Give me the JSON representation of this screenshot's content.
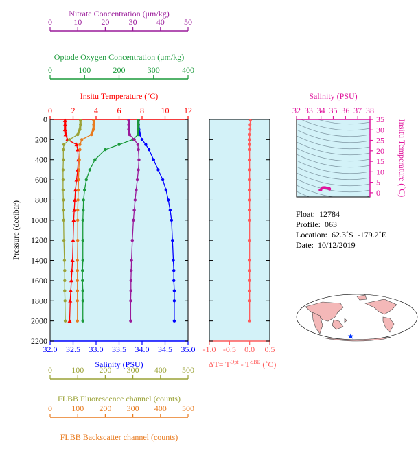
{
  "chart_data": [
    {
      "type": "line",
      "chart": "main-profile",
      "xlim_salinity": [
        32.0,
        35.0
      ],
      "xlim_temperature": [
        0,
        12
      ],
      "xlim_oxygen": [
        0,
        400
      ],
      "xlim_nitrate": [
        0,
        50
      ],
      "xlim_fluorescence": [
        0,
        500
      ],
      "xlim_backscatter": [
        0,
        500
      ],
      "ylim_pressure": [
        2200,
        0
      ],
      "axes": {
        "nitrate": {
          "label": "Nitrate Concentration (μm/kg)",
          "ticks": [
            "0",
            "10",
            "20",
            "30",
            "40",
            "50"
          ]
        },
        "oxygen": {
          "label": "Optode Oxygen Concentration (μm/kg)",
          "ticks": [
            "0",
            "100",
            "200",
            "300",
            "400"
          ]
        },
        "temperature": {
          "label": "Insitu Temperature (˚C)",
          "ticks": [
            "0",
            "2",
            "4",
            "6",
            "8",
            "10",
            "12"
          ]
        },
        "salinity": {
          "label": "Salinity (PSU)",
          "ticks": [
            "32.0",
            "32.5",
            "33.0",
            "33.5",
            "34.0",
            "34.5",
            "35.0"
          ]
        },
        "pressure": {
          "label": "Pressure (decibar)",
          "ticks": [
            "0",
            "200",
            "400",
            "600",
            "800",
            "1000",
            "1200",
            "1400",
            "1600",
            "1800",
            "2000",
            "2200"
          ]
        },
        "fluorescence": {
          "label": "FLBB Fluorescence channel (counts)",
          "ticks": [
            "0",
            "100",
            "200",
            "300",
            "400",
            "500"
          ]
        },
        "backscatter": {
          "label": "FLBB Backscatter channel (counts)",
          "ticks": [
            "0",
            "100",
            "200",
            "300",
            "400",
            "500"
          ]
        }
      },
      "series": [
        {
          "key": "temperature",
          "color": "#ff0000",
          "marker": "triangle",
          "x": [
            1.3,
            1.3,
            1.3,
            1.35,
            1.5,
            2.3,
            2.4,
            2.45,
            2.4,
            2.3,
            2.2,
            2.15,
            2.1,
            2.05,
            2.0,
            1.95,
            1.9,
            1.85,
            1.8,
            1.75,
            1.7
          ],
          "pressure": [
            10,
            50,
            100,
            150,
            200,
            250,
            300,
            400,
            500,
            600,
            700,
            800,
            900,
            1000,
            1200,
            1400,
            1500,
            1600,
            1700,
            1800,
            2000
          ]
        },
        {
          "key": "salinity",
          "color": "#0000ff",
          "marker": "circle",
          "x": [
            33.92,
            33.92,
            33.93,
            33.95,
            34.0,
            34.08,
            34.15,
            34.25,
            34.35,
            34.45,
            34.52,
            34.57,
            34.61,
            34.64,
            34.66,
            34.68,
            34.69,
            34.69,
            34.7,
            34.7,
            34.7
          ],
          "pressure": [
            10,
            50,
            100,
            150,
            200,
            250,
            300,
            400,
            500,
            600,
            700,
            800,
            900,
            1000,
            1200,
            1400,
            1500,
            1600,
            1700,
            1800,
            2000
          ]
        },
        {
          "key": "oxygen",
          "color": "#1a9a3a",
          "marker": "circle",
          "x": [
            256,
            256,
            256,
            255,
            240,
            200,
            160,
            130,
            115,
            105,
            100,
            97,
            96,
            95,
            95,
            95,
            94,
            94,
            95,
            95,
            95
          ],
          "pressure": [
            10,
            50,
            100,
            150,
            200,
            250,
            300,
            400,
            500,
            600,
            700,
            800,
            900,
            1000,
            1200,
            1400,
            1500,
            1600,
            1700,
            1800,
            2000
          ]
        },
        {
          "key": "nitrate",
          "color": "#9a1a9a",
          "marker": "circle",
          "x": [
            28.5,
            28.5,
            28.5,
            28.8,
            30.5,
            31.8,
            32.0,
            32.2,
            32.0,
            31.6,
            31.2,
            30.8,
            30.5,
            30.2,
            29.8,
            29.5,
            29.4,
            29.3,
            29.3,
            29.2,
            29.2
          ],
          "pressure": [
            10,
            50,
            100,
            150,
            200,
            250,
            300,
            400,
            500,
            600,
            700,
            800,
            900,
            1000,
            1200,
            1400,
            1500,
            1600,
            1700,
            1800,
            2000
          ]
        },
        {
          "key": "fluorescence",
          "color": "#9aa236",
          "marker": "circle",
          "x": [
            110,
            110,
            108,
            100,
            70,
            50,
            48,
            48,
            47,
            47,
            47,
            48,
            48,
            49,
            50,
            52,
            53,
            53,
            53,
            54,
            55
          ],
          "pressure": [
            10,
            50,
            100,
            150,
            200,
            250,
            300,
            400,
            500,
            600,
            700,
            800,
            900,
            1000,
            1200,
            1400,
            1500,
            1600,
            1700,
            1800,
            2000
          ]
        },
        {
          "key": "backscatter",
          "color": "#e87a1e",
          "marker": "circle",
          "x": [
            158,
            158,
            157,
            150,
            115,
            108,
            108,
            106,
            104,
            103,
            102,
            101,
            100,
            100,
            100,
            99,
            99,
            99,
            99,
            99,
            99
          ],
          "pressure": [
            10,
            50,
            100,
            150,
            200,
            250,
            300,
            400,
            500,
            600,
            700,
            800,
            900,
            1000,
            1200,
            1400,
            1500,
            1600,
            1700,
            1800,
            2000
          ]
        }
      ]
    },
    {
      "type": "line",
      "chart": "delta-t",
      "xlabel": "ΔT= T^Opt - T^SBE (˚C)",
      "xlabel_parts": [
        "ΔT= T",
        "Opt",
        " - T",
        "SBE",
        " (˚C)"
      ],
      "xlim": [
        -1.0,
        0.5
      ],
      "x_ticks": [
        "-1.0",
        "-0.5",
        "0.0",
        "0.5"
      ],
      "series": [
        {
          "name": "",
          "color": "#ff5c5c",
          "x": [
            0.02,
            0.01,
            0.01,
            0.0,
            0.0,
            0.0,
            0.0,
            0.0,
            0.0,
            0.0,
            0.0,
            0.0,
            0.0,
            0.0,
            0.0,
            0.0,
            0.0,
            0.0,
            0.0,
            0.0,
            0.0
          ],
          "pressure": [
            10,
            50,
            100,
            150,
            200,
            250,
            300,
            400,
            500,
            600,
            700,
            800,
            900,
            1000,
            1200,
            1400,
            1500,
            1600,
            1700,
            1800,
            2000
          ]
        }
      ]
    },
    {
      "type": "scatter",
      "chart": "ts-diagram",
      "xlabel": "Salinity (PSU)",
      "ylabel": "Insitu Temperature (˚C)",
      "xlim": [
        32,
        38
      ],
      "ylim": [
        -2,
        35
      ],
      "x_ticks": [
        "32",
        "33",
        "34",
        "35",
        "36",
        "37",
        "38"
      ],
      "y_ticks": [
        "0",
        "5",
        "10",
        "15",
        "20",
        "25",
        "30",
        "35"
      ],
      "color": "#e0139c",
      "points": [
        [
          33.92,
          1.3
        ],
        [
          33.95,
          1.35
        ],
        [
          34.0,
          1.5
        ],
        [
          34.08,
          2.3
        ],
        [
          34.15,
          2.4
        ],
        [
          34.25,
          2.45
        ],
        [
          34.35,
          2.4
        ],
        [
          34.45,
          2.3
        ],
        [
          34.52,
          2.2
        ],
        [
          34.57,
          2.15
        ],
        [
          34.61,
          2.1
        ],
        [
          34.64,
          2.05
        ],
        [
          34.66,
          2.0
        ],
        [
          34.68,
          1.95
        ],
        [
          34.69,
          1.9
        ],
        [
          34.7,
          1.8
        ],
        [
          34.7,
          1.7
        ]
      ]
    }
  ],
  "info": {
    "float": "Float:  12784",
    "profile": "Profile:  063",
    "location": "Location:  62.3˚S  -179.2˚E",
    "date": "Date:  10/12/2019"
  },
  "map": {
    "land_color": "#f4b8b8",
    "ocean_color": "#ffffff",
    "marker_color": "#0033ff"
  },
  "colors": {
    "panel_bg": "#d3f2f8"
  }
}
